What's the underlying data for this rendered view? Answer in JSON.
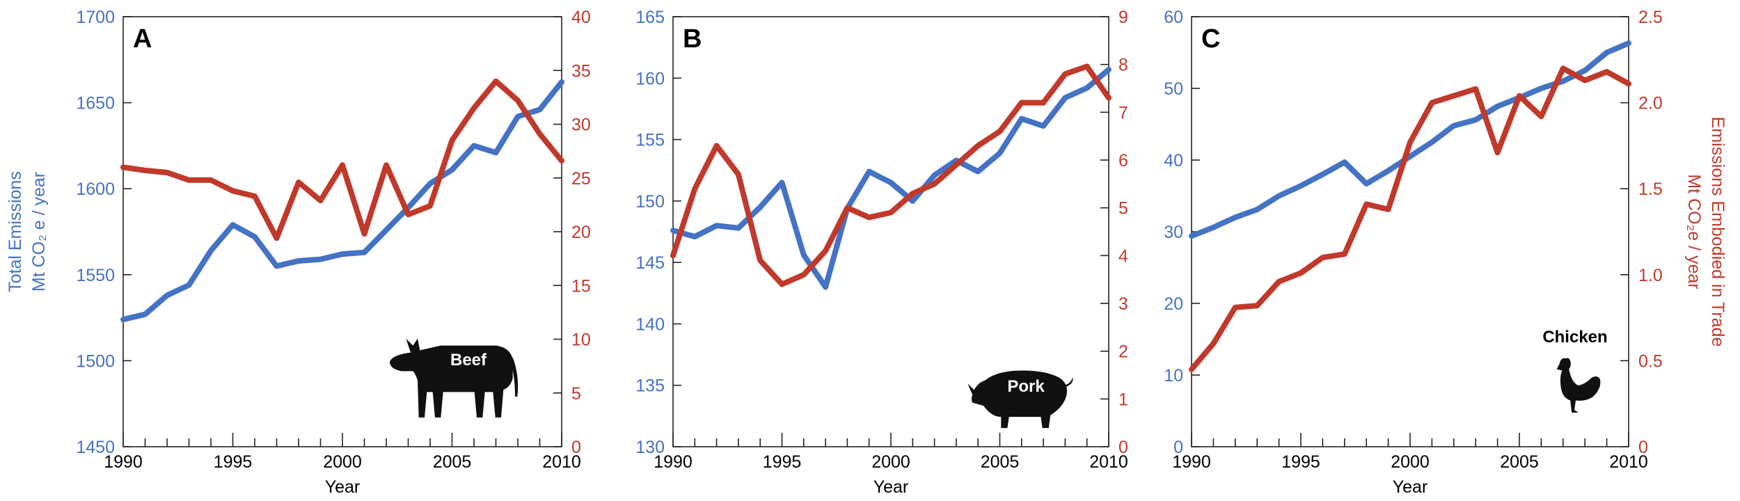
{
  "colors": {
    "left_series": "#4472c4",
    "right_series": "#c0392b",
    "frame": "#222222",
    "text": "#000000"
  },
  "chart_data": [
    {
      "type": "line",
      "panel_label": "A",
      "animal_label": "Beef",
      "icon": "cow-silhouette",
      "xlabel": "Year",
      "xlim": [
        1990,
        2010
      ],
      "xticks": [
        1990,
        1995,
        2000,
        2005,
        2010
      ],
      "ylabel_left": [
        "Total Emissions",
        "Mt CO₂ e / year"
      ],
      "ylabel_right": [],
      "ylim_left": [
        1450,
        1700
      ],
      "yticks_left": [
        1450,
        1500,
        1550,
        1600,
        1650,
        1700
      ],
      "ylim_right": [
        0,
        40
      ],
      "yticks_right": [
        0,
        5,
        10,
        15,
        20,
        25,
        30,
        35,
        40
      ],
      "grid": false,
      "x": [
        1990,
        1991,
        1992,
        1993,
        1994,
        1995,
        1996,
        1997,
        1998,
        1999,
        2000,
        2001,
        2002,
        2003,
        2004,
        2005,
        2006,
        2007,
        2008,
        2009,
        2010
      ],
      "series": [
        {
          "axis": "left",
          "color": "#4472c4",
          "values": [
            1524,
            1527,
            1538,
            1544,
            1564,
            1579,
            1572,
            1555,
            1558,
            1559,
            1562,
            1563,
            1576,
            1589,
            1603,
            1611,
            1625,
            1621,
            1642,
            1646,
            1662
          ]
        },
        {
          "axis": "right",
          "color": "#c0392b",
          "values": [
            26.0,
            25.7,
            25.5,
            24.8,
            24.8,
            23.8,
            23.3,
            19.4,
            24.6,
            22.9,
            26.2,
            19.8,
            26.2,
            21.6,
            22.4,
            28.5,
            31.5,
            34.0,
            32.2,
            29.1,
            26.6
          ]
        }
      ]
    },
    {
      "type": "line",
      "panel_label": "B",
      "animal_label": "Pork",
      "icon": "pig-silhouette",
      "xlabel": "Year",
      "xlim": [
        1990,
        2010
      ],
      "xticks": [
        1990,
        1995,
        2000,
        2005,
        2010
      ],
      "ylabel_left": [],
      "ylabel_right": [],
      "ylim_left": [
        130,
        165
      ],
      "yticks_left": [
        130,
        135,
        140,
        145,
        150,
        155,
        160,
        165
      ],
      "ylim_right": [
        0,
        9
      ],
      "yticks_right": [
        0,
        1,
        2,
        3,
        4,
        5,
        6,
        7,
        8,
        9
      ],
      "grid": false,
      "x": [
        1990,
        1991,
        1992,
        1993,
        1994,
        1995,
        1996,
        1997,
        1998,
        1999,
        2000,
        2001,
        2002,
        2003,
        2004,
        2005,
        2006,
        2007,
        2008,
        2009,
        2010
      ],
      "series": [
        {
          "axis": "left",
          "color": "#4472c4",
          "values": [
            147.6,
            147.1,
            148.0,
            147.8,
            149.5,
            151.5,
            145.6,
            143.0,
            149.4,
            152.4,
            151.5,
            150.0,
            152.1,
            153.3,
            152.4,
            153.9,
            156.7,
            156.1,
            158.4,
            159.2,
            160.7
          ]
        },
        {
          "axis": "right",
          "color": "#c0392b",
          "values": [
            4.0,
            5.4,
            6.3,
            5.7,
            3.9,
            3.4,
            3.6,
            4.1,
            5.0,
            4.8,
            4.9,
            5.3,
            5.5,
            5.9,
            6.3,
            6.6,
            7.2,
            7.2,
            7.8,
            7.96,
            7.3
          ]
        }
      ]
    },
    {
      "type": "line",
      "panel_label": "C",
      "animal_label": "Chicken",
      "icon": "chicken-silhouette",
      "xlabel": "Year",
      "xlim": [
        1990,
        2010
      ],
      "xticks": [
        1990,
        1995,
        2000,
        2005,
        2010
      ],
      "ylabel_left": [],
      "ylabel_right": [
        "Emissions Embodied in Trade",
        "Mt CO₂e / year"
      ],
      "ylim_left": [
        0,
        60
      ],
      "yticks_left": [
        0,
        10,
        20,
        30,
        40,
        50,
        60
      ],
      "ylim_right": [
        0,
        2.5
      ],
      "yticks_right": [
        0,
        0.5,
        1.0,
        1.5,
        2.0,
        2.5
      ],
      "ytick_labels_right": [
        "0",
        "0.5",
        "1.0",
        "1.5",
        "2.0",
        "2.5"
      ],
      "grid": false,
      "x": [
        1990,
        1991,
        1992,
        1993,
        1994,
        1995,
        1996,
        1997,
        1998,
        1999,
        2000,
        2001,
        2002,
        2003,
        2004,
        2005,
        2006,
        2007,
        2008,
        2009,
        2010
      ],
      "series": [
        {
          "axis": "left",
          "color": "#4472c4",
          "values": [
            29.4,
            30.6,
            32.0,
            33.1,
            35.0,
            36.4,
            38.0,
            39.7,
            36.7,
            38.5,
            40.5,
            42.5,
            44.8,
            45.6,
            47.5,
            48.7,
            50.0,
            51.0,
            52.5,
            55.0,
            56.3
          ]
        },
        {
          "axis": "right",
          "color": "#c0392b",
          "values": [
            0.45,
            0.6,
            0.81,
            0.82,
            0.96,
            1.01,
            1.1,
            1.12,
            1.41,
            1.38,
            1.77,
            2.0,
            2.04,
            2.08,
            1.71,
            2.04,
            1.92,
            2.2,
            2.13,
            2.18,
            2.11
          ]
        }
      ]
    }
  ]
}
